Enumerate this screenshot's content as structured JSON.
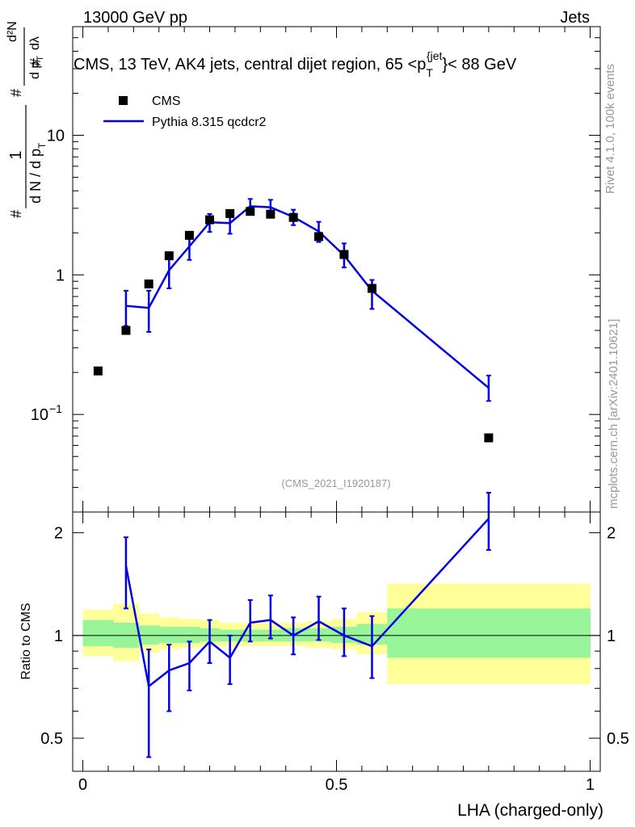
{
  "header": {
    "left": "13000 GeV pp",
    "right": "Jets"
  },
  "side_texts": {
    "rivet": "Rivet 4.1.0,  100k events",
    "mcplots": "mcplots.cern.ch [arXiv:2401.10621]"
  },
  "colors": {
    "mc": "#0000e6",
    "data": "#000000",
    "band_inner": "#99f599",
    "band_outer": "#ffff99",
    "watermark": "#999999"
  },
  "chart_data": [
    {
      "id": "main",
      "type": "scatter",
      "yscale": "log",
      "title": "CMS, 13 TeV, AK4 jets, central dijet region, 65 <p_T^{jet}< 88 GeV",
      "title_parts": {
        "prefix": "CMS, 13 TeV, AK4 jets, central dijet region, 65 <p",
        "sub": "T",
        "sup": "{jet",
        "suffix": "}< 88 GeV"
      },
      "ylabel": "1/dN/dp_T  d²N/dp_T dλ",
      "ylabel_parts": {
        "hash": "#",
        "one": "1",
        "den": "d N / d p",
        "t": "T",
        "num": "d²N",
        "den2": "d p",
        "lam": "dλ"
      },
      "watermark": "(CMS_2021_I1920187)",
      "xlim": [
        -0.02,
        1.02
      ],
      "ylim": [
        0.02,
        60
      ],
      "yticks": [
        {
          "value": 0.1,
          "label": "10",
          "exp": "−1"
        },
        {
          "value": 1,
          "label": "1",
          "exp": ""
        },
        {
          "value": 10,
          "label": "10",
          "exp": ""
        }
      ],
      "legend": {
        "position": "top-left",
        "entries": [
          {
            "label": "CMS",
            "style": "marker"
          },
          {
            "label": "Pythia 8.315 qcdcr2",
            "style": "line"
          }
        ]
      },
      "series": [
        {
          "name": "CMS",
          "style": "marker",
          "x": [
            0.03,
            0.085,
            0.13,
            0.17,
            0.21,
            0.25,
            0.29,
            0.33,
            0.37,
            0.415,
            0.465,
            0.515,
            0.57,
            0.8
          ],
          "y": [
            0.205,
            0.4,
            0.86,
            1.37,
            1.92,
            2.48,
            2.75,
            2.85,
            2.72,
            2.58,
            1.88,
            1.4,
            0.8,
            0.068
          ]
        },
        {
          "name": "Pythia 8.315 qcdcr2",
          "style": "line",
          "x": [
            0.085,
            0.13,
            0.17,
            0.21,
            0.25,
            0.29,
            0.33,
            0.37,
            0.415,
            0.465,
            0.515,
            0.57,
            0.8
          ],
          "y": [
            0.6,
            0.58,
            1.08,
            1.6,
            2.38,
            2.35,
            3.1,
            3.05,
            2.6,
            2.05,
            1.38,
            0.77,
            0.155
          ],
          "err_low": [
            0.17,
            0.19,
            0.28,
            0.32,
            0.35,
            0.38,
            0.33,
            0.35,
            0.33,
            0.33,
            0.25,
            0.2,
            0.03
          ],
          "err_high": [
            0.17,
            0.19,
            0.28,
            0.32,
            0.35,
            0.38,
            0.4,
            0.4,
            0.33,
            0.35,
            0.3,
            0.15,
            0.035
          ]
        }
      ]
    },
    {
      "id": "ratio",
      "type": "line",
      "yscale": "log",
      "xlabel": "LHA (charged-only)",
      "ylabel": "Ratio to CMS",
      "xlim": [
        -0.02,
        1.02
      ],
      "ylim": [
        0.4,
        2.3
      ],
      "xticks": [
        {
          "value": 0,
          "label": "0"
        },
        {
          "value": 0.5,
          "label": "0.5"
        },
        {
          "value": 1,
          "label": "1"
        }
      ],
      "yticks": [
        {
          "value": 0.5,
          "label": "0.5"
        },
        {
          "value": 1,
          "label": "1"
        },
        {
          "value": 2,
          "label": "2"
        }
      ],
      "bands": [
        {
          "x0": 0.0,
          "x1": 0.06,
          "outer": [
            0.87,
            1.19
          ],
          "inner": [
            0.93,
            1.11
          ]
        },
        {
          "x0": 0.06,
          "x1": 0.11,
          "outer": [
            0.84,
            1.24
          ],
          "inner": [
            0.92,
            1.09
          ]
        },
        {
          "x0": 0.11,
          "x1": 0.15,
          "outer": [
            0.89,
            1.16
          ],
          "inner": [
            0.94,
            1.07
          ]
        },
        {
          "x0": 0.15,
          "x1": 0.19,
          "outer": [
            0.91,
            1.13
          ],
          "inner": [
            0.95,
            1.06
          ]
        },
        {
          "x0": 0.19,
          "x1": 0.23,
          "outer": [
            0.92,
            1.12
          ],
          "inner": [
            0.95,
            1.06
          ]
        },
        {
          "x0": 0.23,
          "x1": 0.27,
          "outer": [
            0.93,
            1.11
          ],
          "inner": [
            0.96,
            1.05
          ]
        },
        {
          "x0": 0.27,
          "x1": 0.31,
          "outer": [
            0.93,
            1.09
          ],
          "inner": [
            0.96,
            1.04
          ]
        },
        {
          "x0": 0.31,
          "x1": 0.35,
          "outer": [
            0.93,
            1.09
          ],
          "inner": [
            0.96,
            1.04
          ]
        },
        {
          "x0": 0.35,
          "x1": 0.39,
          "outer": [
            0.93,
            1.09
          ],
          "inner": [
            0.96,
            1.04
          ]
        },
        {
          "x0": 0.39,
          "x1": 0.44,
          "outer": [
            0.93,
            1.09
          ],
          "inner": [
            0.96,
            1.05
          ]
        },
        {
          "x0": 0.44,
          "x1": 0.49,
          "outer": [
            0.92,
            1.1
          ],
          "inner": [
            0.96,
            1.05
          ]
        },
        {
          "x0": 0.49,
          "x1": 0.54,
          "outer": [
            0.91,
            1.12
          ],
          "inner": [
            0.95,
            1.06
          ]
        },
        {
          "x0": 0.54,
          "x1": 0.6,
          "outer": [
            0.88,
            1.17
          ],
          "inner": [
            0.94,
            1.08
          ]
        },
        {
          "x0": 0.6,
          "x1": 1.0,
          "outer": [
            0.72,
            1.42
          ],
          "inner": [
            0.86,
            1.2
          ]
        }
      ],
      "series": [
        {
          "name": "Pythia 8.315 qcdcr2 / CMS",
          "x": [
            0.085,
            0.13,
            0.17,
            0.21,
            0.25,
            0.29,
            0.33,
            0.37,
            0.415,
            0.465,
            0.515,
            0.57,
            0.8
          ],
          "y": [
            1.6,
            0.71,
            0.79,
            0.83,
            0.96,
            0.86,
            1.09,
            1.11,
            1.0,
            1.1,
            1.0,
            0.93,
            2.2
          ],
          "err_low": [
            0.4,
            0.27,
            0.19,
            0.14,
            0.13,
            0.14,
            0.13,
            0.13,
            0.12,
            0.13,
            0.13,
            0.18,
            0.42
          ],
          "err_high": [
            0.34,
            0.2,
            0.15,
            0.13,
            0.15,
            0.14,
            0.18,
            0.2,
            0.13,
            0.2,
            0.2,
            0.21,
            0.42
          ]
        }
      ]
    }
  ]
}
